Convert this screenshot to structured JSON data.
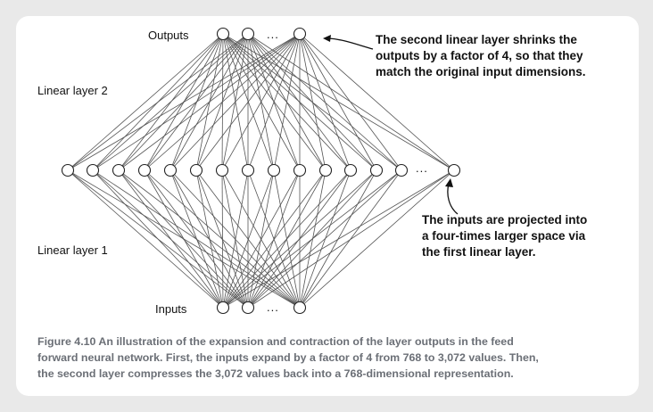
{
  "diagram": {
    "labels": {
      "outputs": "Outputs",
      "inputs": "Inputs",
      "linear_layer_2": "Linear layer 2",
      "linear_layer_1": "Linear layer 1",
      "ellipsis": "..."
    },
    "notes": {
      "top": [
        "The second linear layer shrinks the",
        "outputs by a factor of 4, so that they",
        "match the original input dimensions."
      ],
      "bottom": [
        "The inputs are projected into",
        "a four-times larger space via",
        "the first linear layer."
      ]
    },
    "colors": {
      "line": "#555555",
      "node_stroke": "#222222",
      "caption": "#6b6f76",
      "background": "#e9e9e9"
    }
  },
  "caption": {
    "lines": [
      "Figure 4.10    An illustration of the expansion and contraction of the layer outputs in the feed",
      "forward neural network. First, the inputs expand by a factor of 4 from 768 to 3,072 values. Then,",
      "the second layer compresses the 3,072 values back into a 768-dimensional representation."
    ]
  }
}
